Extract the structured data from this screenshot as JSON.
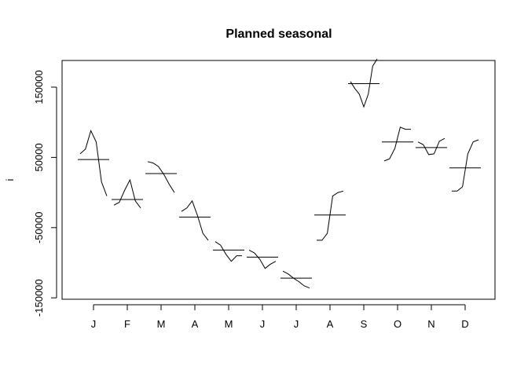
{
  "chart_data": {
    "type": "line",
    "title": "Planned seasonal",
    "xlabel": "",
    "ylabel": "i",
    "ylim": [
      -152000,
      188000
    ],
    "y_ticks": [
      -150000,
      -50000,
      50000,
      150000
    ],
    "y_tick_labels": [
      "-150000",
      "-50000",
      "50000",
      "150000"
    ],
    "months": [
      "J",
      "F",
      "M",
      "A",
      "M",
      "J",
      "J",
      "A",
      "S",
      "O",
      "N",
      "D"
    ],
    "means": [
      47000,
      -10000,
      27000,
      -35000,
      -82000,
      -92000,
      -122000,
      -32000,
      155000,
      72000,
      64000,
      35000
    ],
    "subseries": [
      [
        55000,
        62000,
        88000,
        72000,
        15000,
        -5000
      ],
      [
        -18000,
        -14000,
        3000,
        18000,
        -12000,
        -22000
      ],
      [
        44000,
        42000,
        37000,
        26000,
        12000,
        0
      ],
      [
        -27000,
        -22000,
        -12000,
        -33000,
        -58000,
        -68000
      ],
      [
        -70000,
        -75000,
        -88000,
        -98000,
        -90000,
        -90000
      ],
      [
        -82000,
        -86000,
        -95000,
        -108000,
        -102000,
        -98000
      ],
      [
        -112000,
        -116000,
        -122000,
        -127000,
        -133000,
        -136000
      ],
      [
        -68000,
        -68000,
        -58000,
        -5000,
        0,
        2000
      ],
      [
        158000,
        148000,
        140000,
        122000,
        140000,
        180000,
        190000
      ],
      [
        45000,
        48000,
        63000,
        93000,
        90000,
        90000
      ],
      [
        72000,
        68000,
        54000,
        55000,
        73000,
        77000
      ],
      [
        2000,
        2000,
        8000,
        55000,
        72000,
        75000
      ]
    ]
  }
}
